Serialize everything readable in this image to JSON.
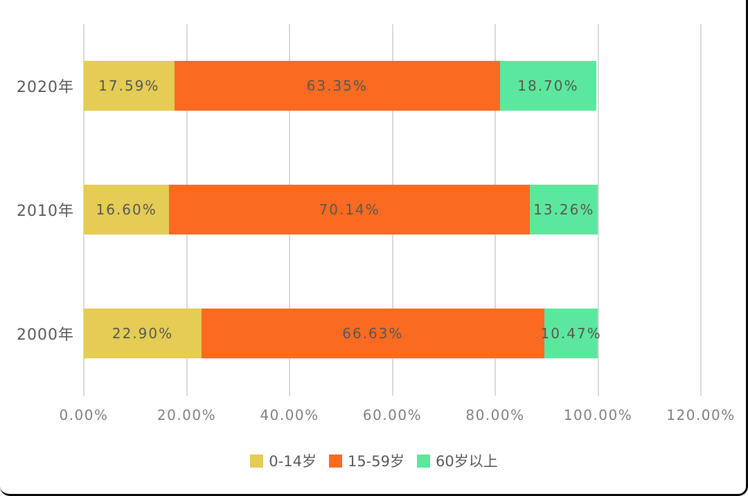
{
  "chart_data": {
    "type": "bar",
    "orientation": "horizontal",
    "stacked": true,
    "title": "",
    "xlabel": "",
    "ylabel": "",
    "categories": [
      "2020年",
      "2010年",
      "2000年"
    ],
    "series": [
      {
        "name": "0-14岁",
        "color": "#e4cc55",
        "values": [
          17.59,
          16.6,
          22.9
        ],
        "value_labels": [
          "17.59%",
          "16.60%",
          "22.90%"
        ]
      },
      {
        "name": "15-59岁",
        "color": "#fb6a21",
        "values": [
          63.35,
          70.14,
          66.63
        ],
        "value_labels": [
          "63.35%",
          "70.14%",
          "66.63%"
        ]
      },
      {
        "name": "60岁以上",
        "color": "#5ce79f",
        "values": [
          18.7,
          13.26,
          10.47
        ],
        "value_labels": [
          "18.70%",
          "13.26%",
          "10.47%"
        ]
      }
    ],
    "x_axis": {
      "min": 0,
      "max": 120,
      "tick_step": 20,
      "tick_labels": [
        "0.00%",
        "20.00%",
        "40.00%",
        "60.00%",
        "80.00%",
        "100.00%",
        "120.00%"
      ]
    },
    "legend": {
      "position": "bottom",
      "entries": [
        "0-14岁",
        "15-59岁",
        "60岁以上"
      ]
    },
    "grid": "vertical",
    "colors": {
      "background": "#ffffff",
      "gridline": "#d9d9d9",
      "tick_label": "#7f7f7f",
      "category_label": "#595959",
      "value_label": "#585850",
      "frame_border": "#0a0a0a"
    }
  }
}
